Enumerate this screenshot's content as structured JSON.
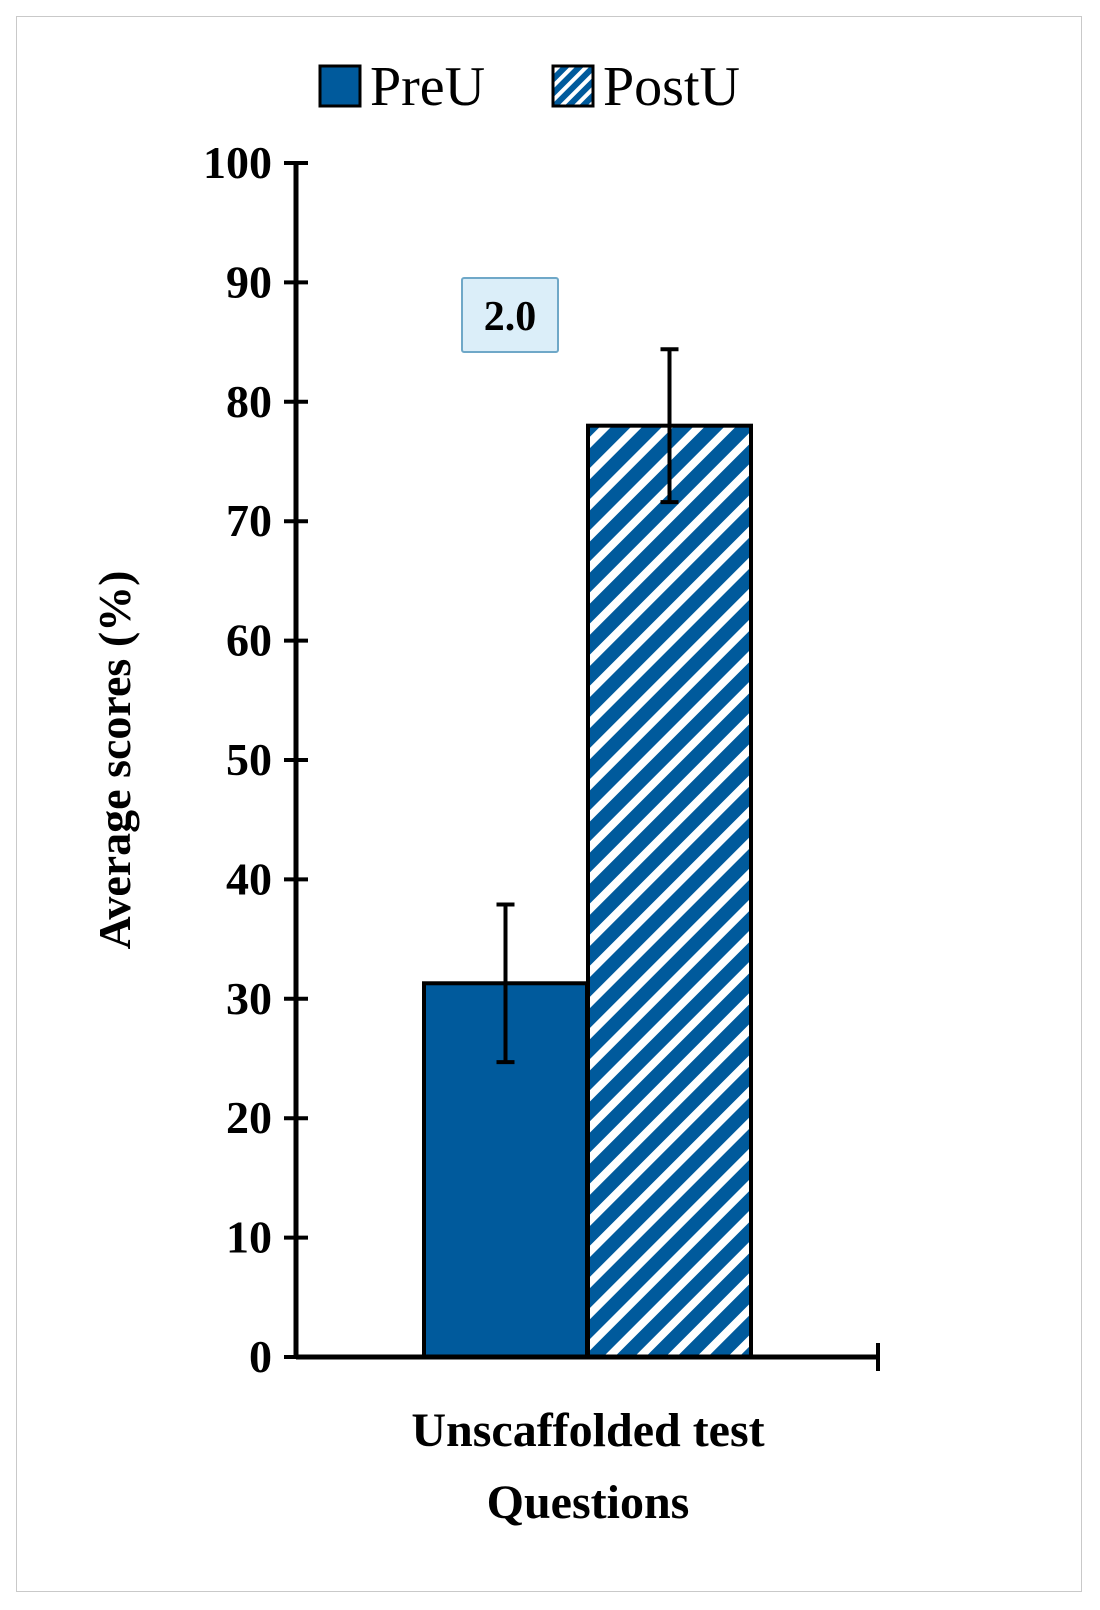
{
  "chart_data": {
    "type": "bar",
    "categories": [
      "Unscaffolded test Questions"
    ],
    "category_label_lines": [
      "Unscaffolded test",
      "Questions"
    ],
    "series": [
      {
        "name": "PreU",
        "values": [
          31.3
        ],
        "error": [
          6.6
        ],
        "fill": "solid",
        "color": "#005a9c"
      },
      {
        "name": "PostU",
        "values": [
          78.0
        ],
        "error": [
          6.4
        ],
        "fill": "diagonal-stripes",
        "color": "#005a9c"
      }
    ],
    "ylabel": "Average scores (%)",
    "xlabel": "",
    "ylim": [
      0,
      100
    ],
    "yticks": [
      0,
      10,
      20,
      30,
      40,
      50,
      60,
      70,
      80,
      90,
      100
    ],
    "grid": false,
    "legend": {
      "placement": "top-center",
      "items": [
        "PreU",
        "PostU"
      ]
    },
    "annotation": {
      "text": "2.0",
      "style": "boxed",
      "background": "#dbeef9",
      "border": "#6fa8c8"
    }
  }
}
